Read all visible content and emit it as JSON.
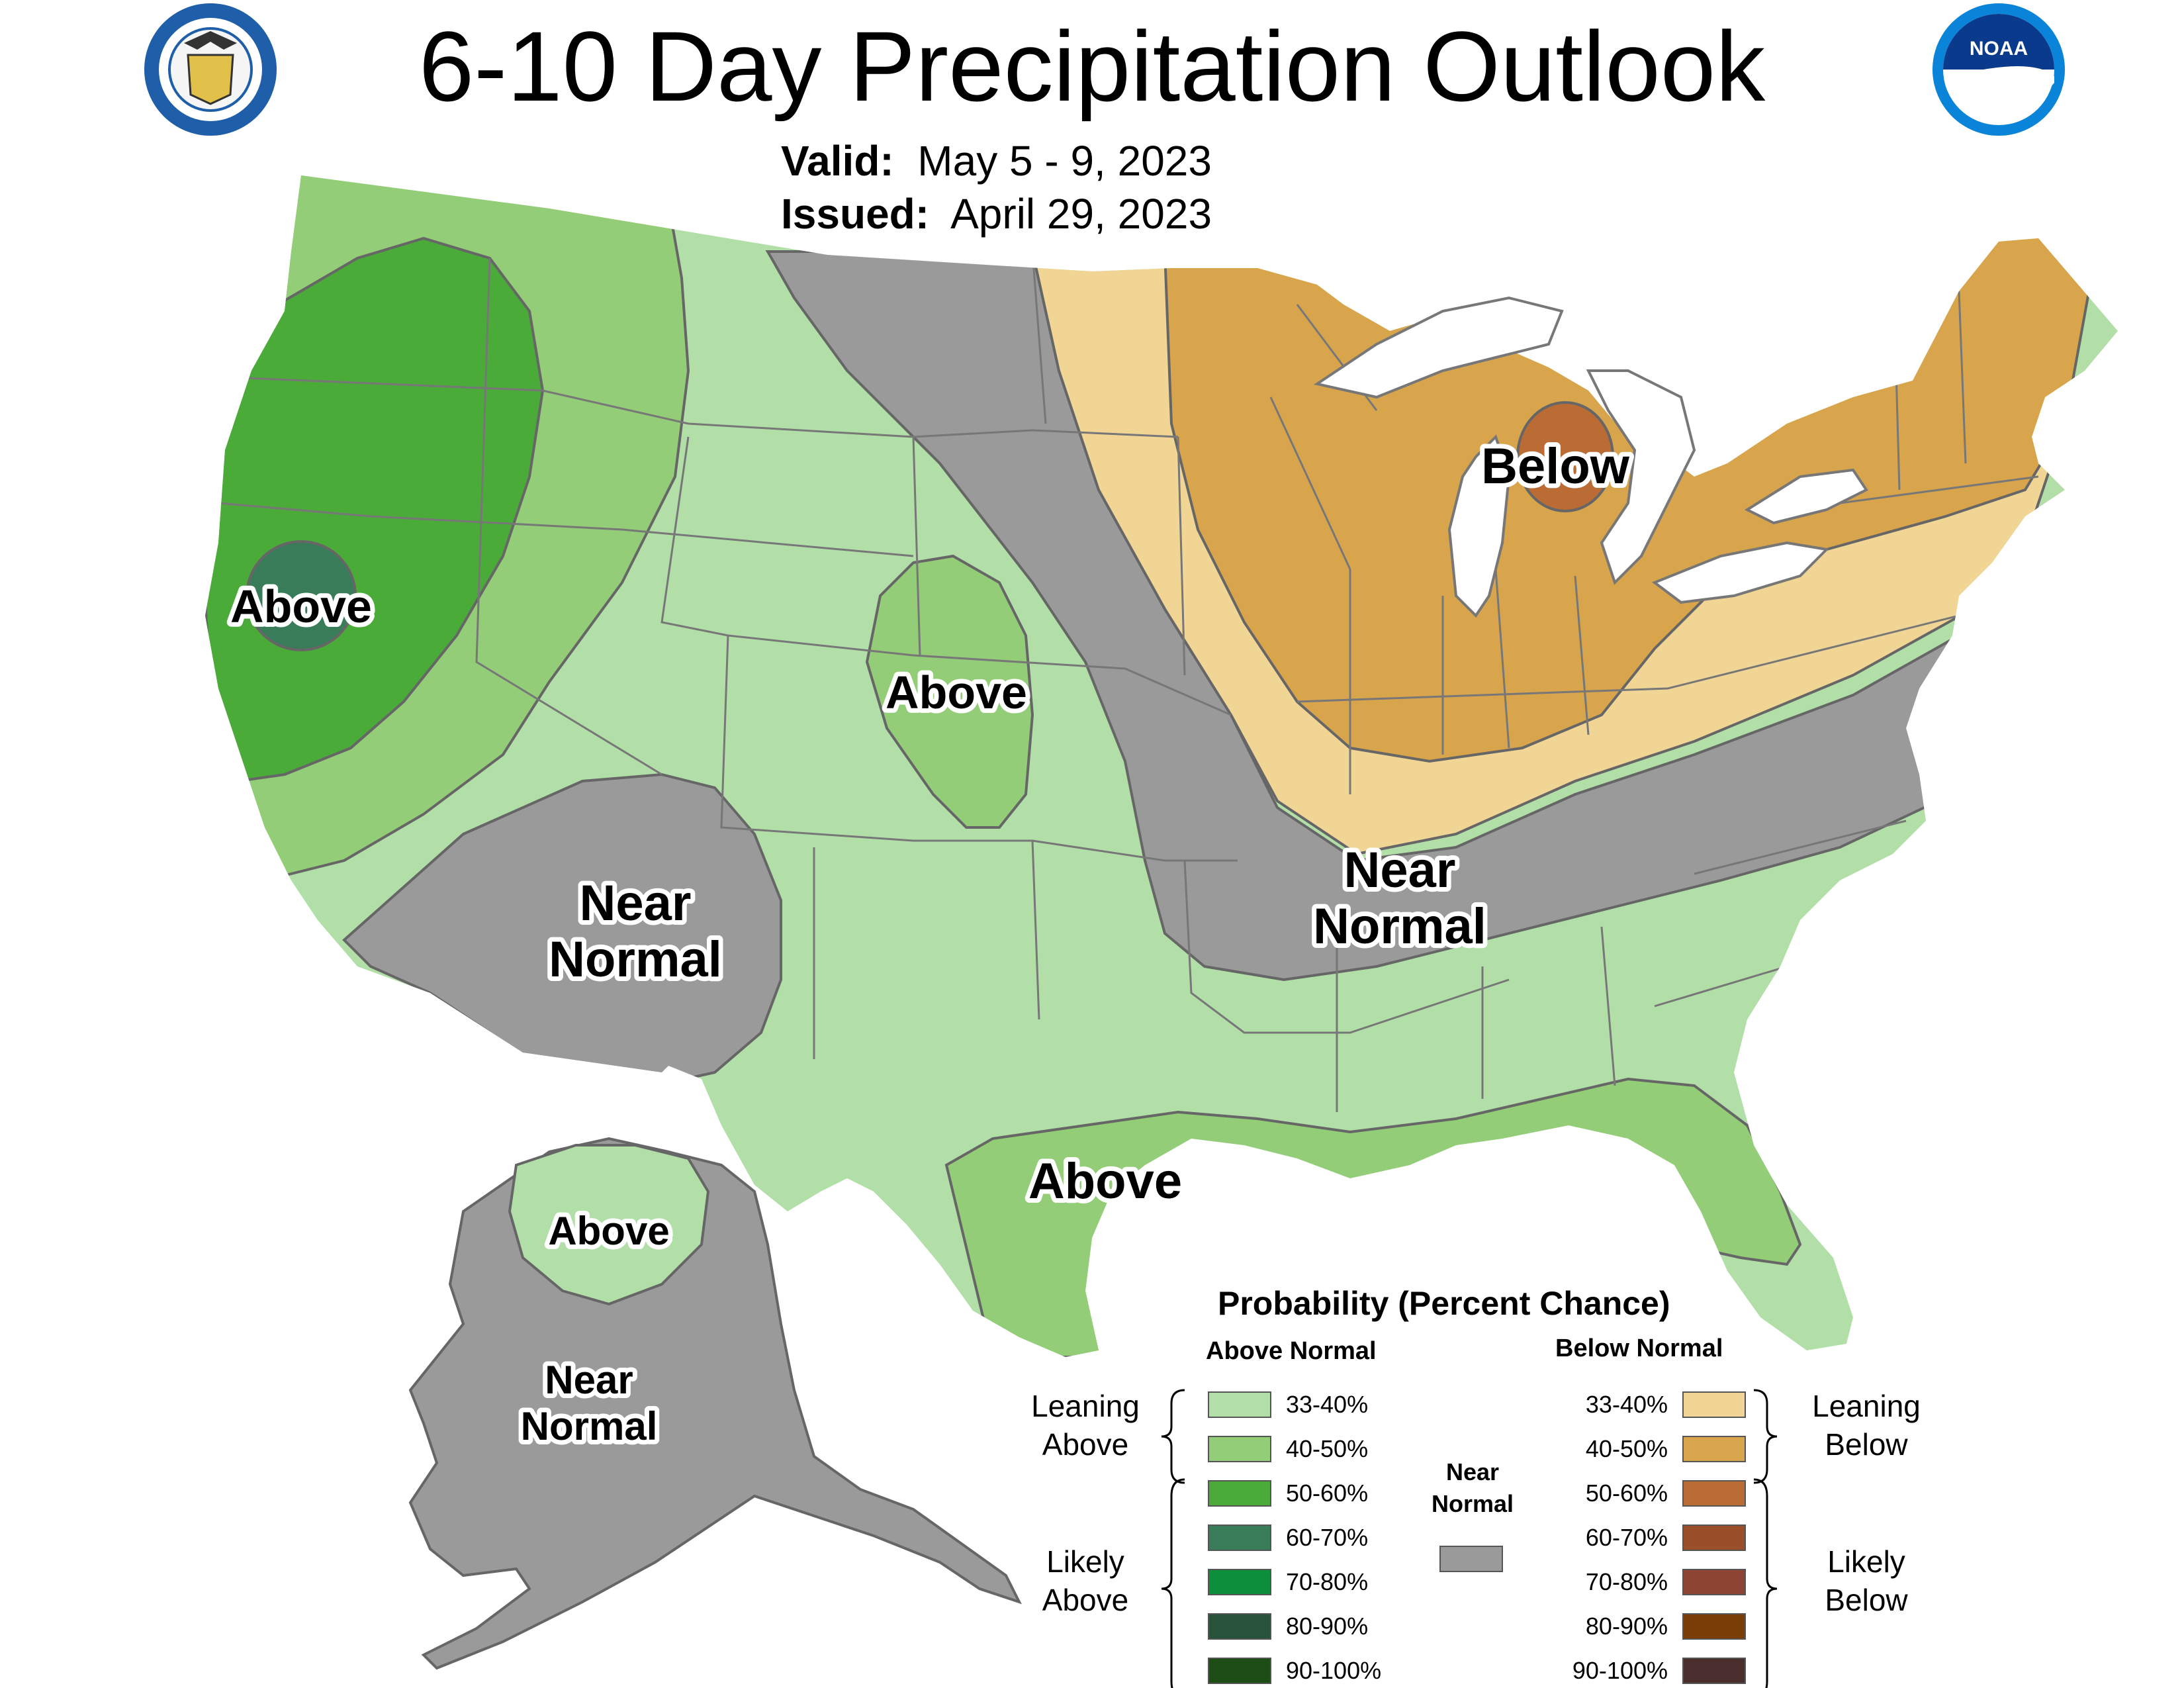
{
  "header": {
    "title": "6-10 Day Precipitation Outlook",
    "valid_label": "Valid:",
    "valid_value": "May 5 - 9, 2023",
    "issued_label": "Issued:",
    "issued_value": "April 29, 2023"
  },
  "logos": {
    "left": "department-of-commerce-seal",
    "right": "noaa-logo",
    "right_text": "NOAA"
  },
  "map_labels": {
    "west_coast": "Above",
    "central_plains": "Above",
    "texas_gulf": "Above",
    "southwest_near": "Near",
    "southwest_normal": "Normal",
    "great_lakes": "Below",
    "mid_near": "Near",
    "mid_normal": "Normal",
    "alaska_above": "Above",
    "alaska_near": "Near",
    "alaska_normal": "Normal"
  },
  "legend": {
    "title": "Probability (Percent Chance)",
    "above_heading": "Above Normal",
    "below_heading": "Below Normal",
    "near_heading_line1": "Near",
    "near_heading_line2": "Normal",
    "near_color": "#9a9a9a",
    "above": [
      {
        "range": "33-40%",
        "color": "#b2dfa8"
      },
      {
        "range": "40-50%",
        "color": "#93cd77"
      },
      {
        "range": "50-60%",
        "color": "#4aab39"
      },
      {
        "range": "60-70%",
        "color": "#387c5a"
      },
      {
        "range": "70-80%",
        "color": "#0c8f3a"
      },
      {
        "range": "80-90%",
        "color": "#26533a"
      },
      {
        "range": "90-100%",
        "color": "#1d4c15"
      }
    ],
    "below": [
      {
        "range": "33-40%",
        "color": "#f1d595"
      },
      {
        "range": "40-50%",
        "color": "#d8a44c"
      },
      {
        "range": "50-60%",
        "color": "#bb6c34"
      },
      {
        "range": "60-70%",
        "color": "#9a4e2a"
      },
      {
        "range": "70-80%",
        "color": "#8d4432"
      },
      {
        "range": "80-90%",
        "color": "#7b3d06"
      },
      {
        "range": "90-100%",
        "color": "#4b2e2e"
      }
    ],
    "leaning_above_1": "Leaning",
    "leaning_above_2": "Above",
    "likely_above_1": "Likely",
    "likely_above_2": "Above",
    "leaning_below_1": "Leaning",
    "leaning_below_2": "Below",
    "likely_below_1": "Likely",
    "likely_below_2": "Below"
  }
}
